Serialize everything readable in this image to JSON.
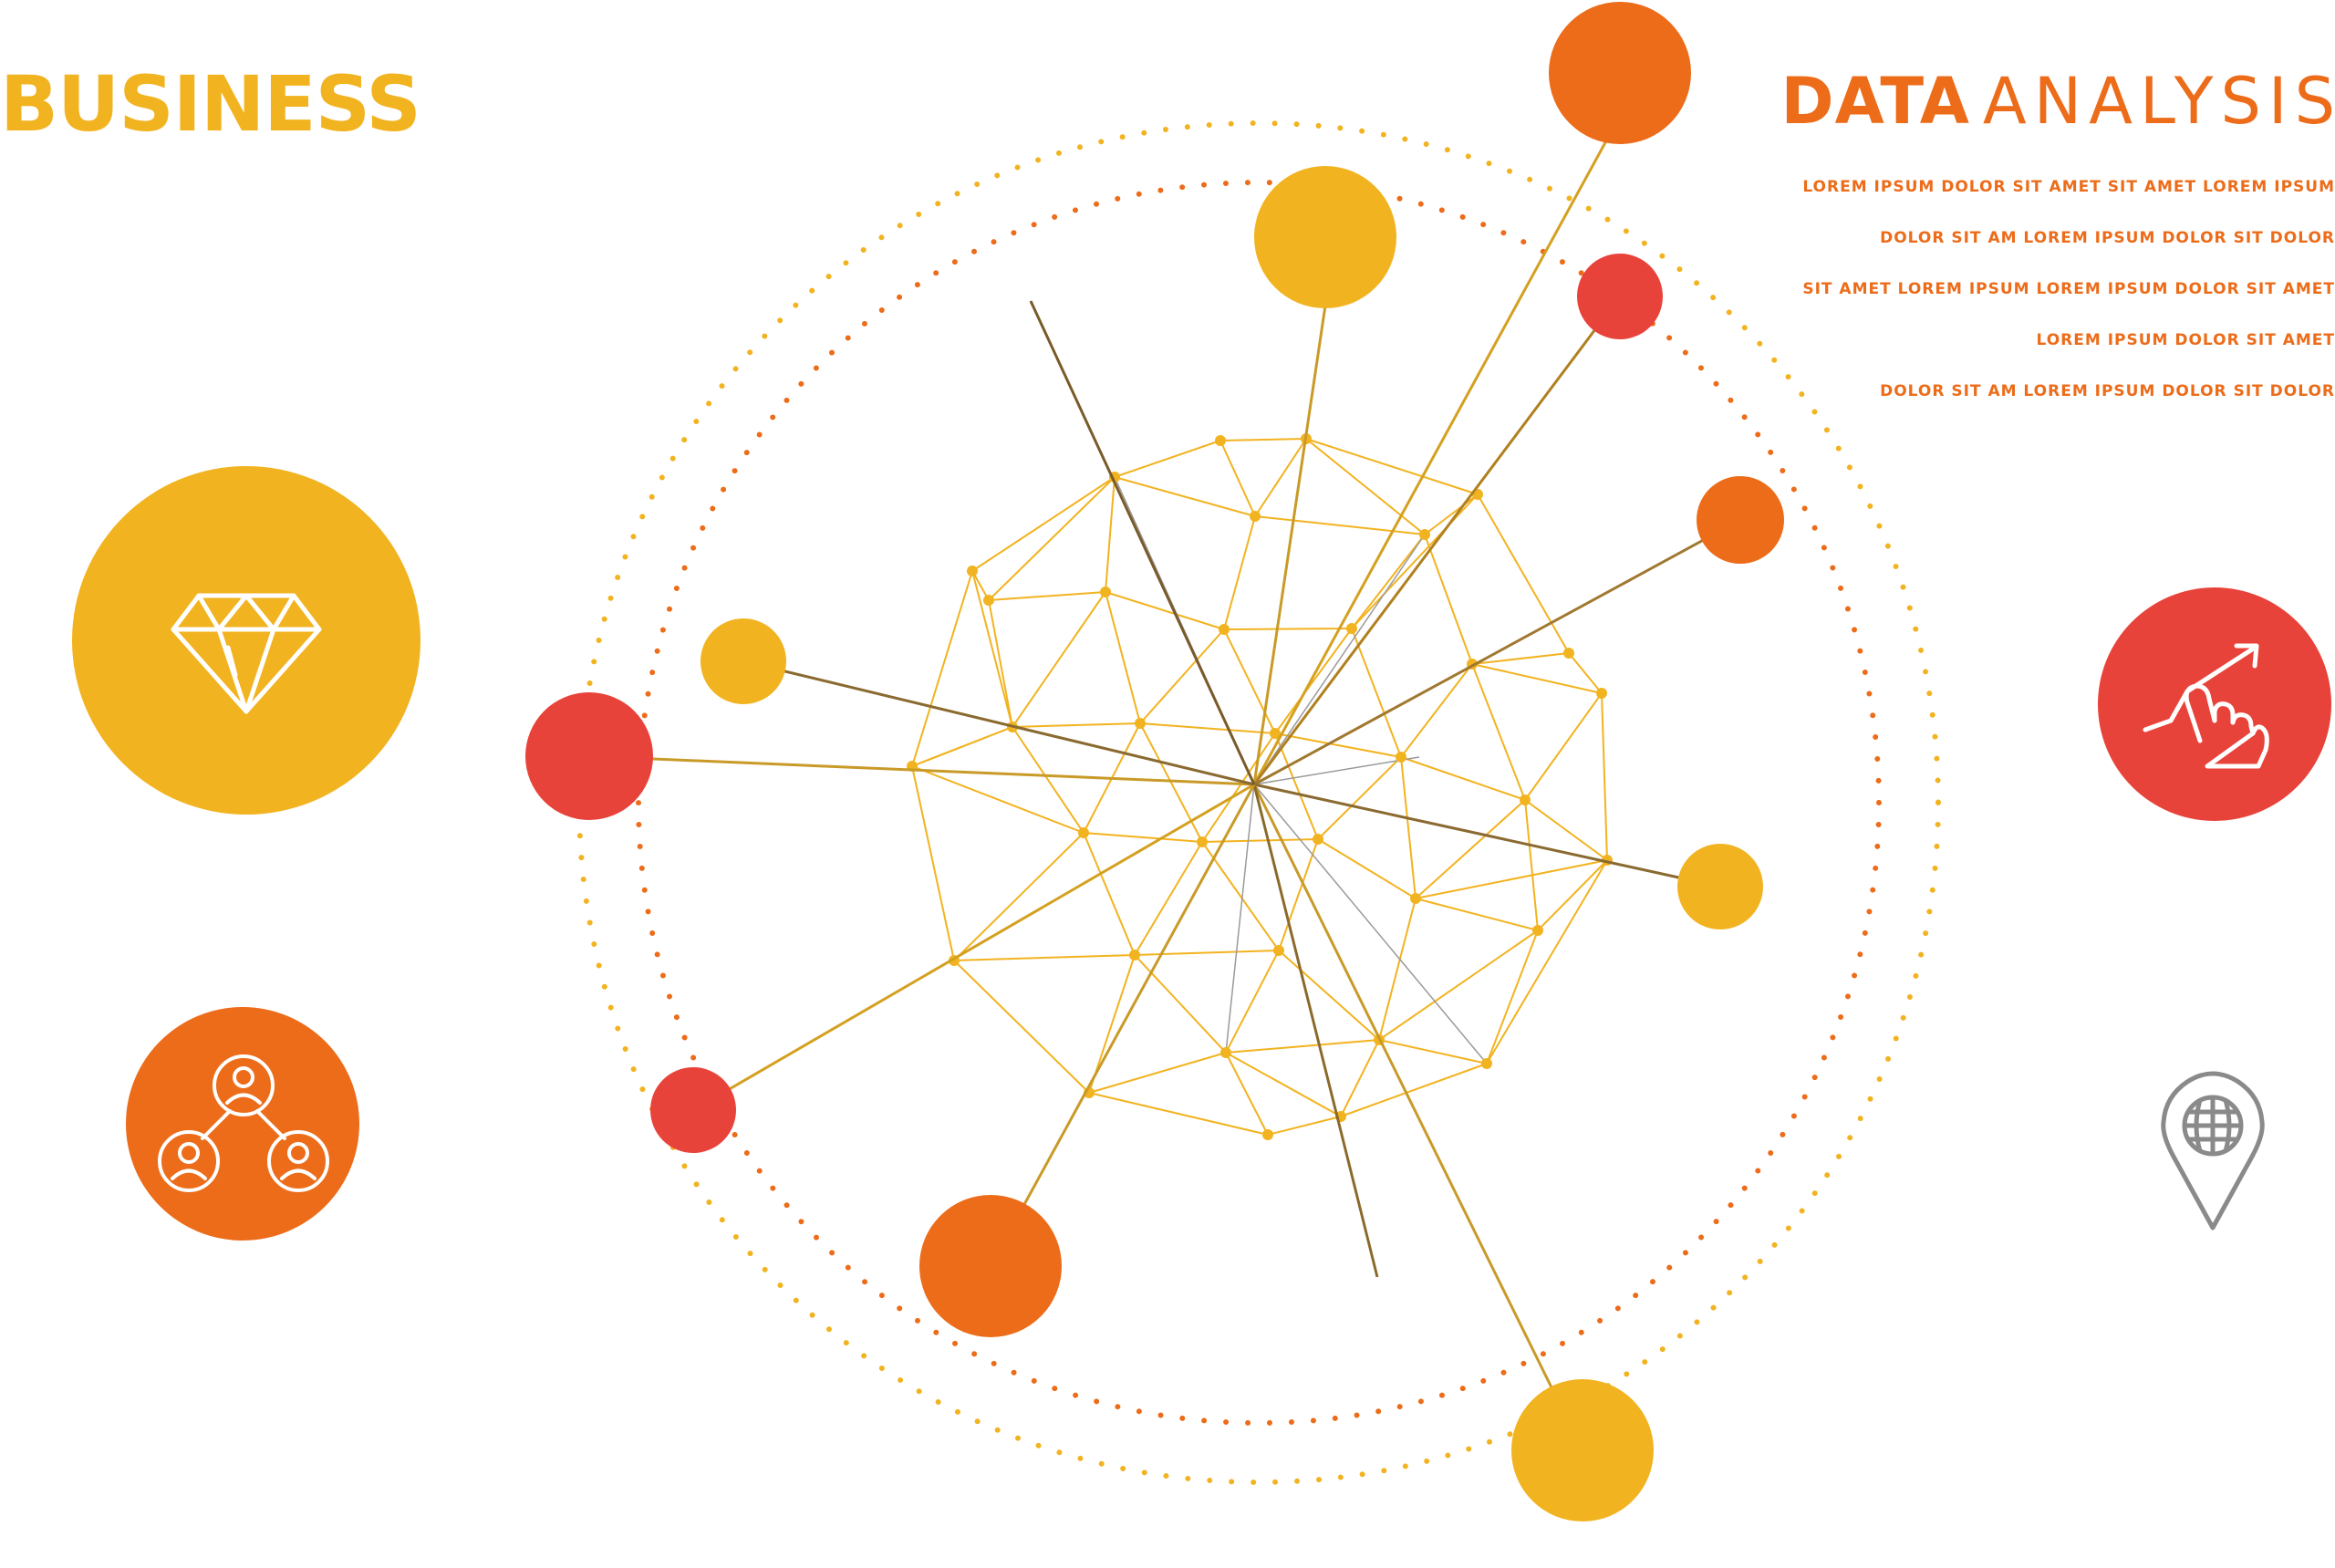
{
  "title_left": "BUSINESS",
  "title_right": {
    "strong": "DATA",
    "light": "ANALYSIS"
  },
  "lorem_lines": [
    "LOREM IPSUM DOLOR SIT AMET SIT AMET LOREM IPSUM",
    "DOLOR SIT AM LOREM IPSUM DOLOR SIT DOLOR",
    "SIT AMET LOREM IPSUM LOREM IPSUM DOLOR SIT AMET",
    "LOREM IPSUM DOLOR SIT AMET",
    "DOLOR SIT AM LOREM IPSUM DOLOR SIT DOLOR"
  ],
  "colors": {
    "yellow": "#f2b320",
    "orange": "#ec6c1a",
    "red": "#e8433a",
    "brown": "#8a6a2a",
    "gray": "#8a8a8a"
  },
  "icons": {
    "left_large": "diamond-icon",
    "left_small": "team-network-icon",
    "right_large": "hand-growth-icon",
    "right_small": "location-globe-icon"
  }
}
